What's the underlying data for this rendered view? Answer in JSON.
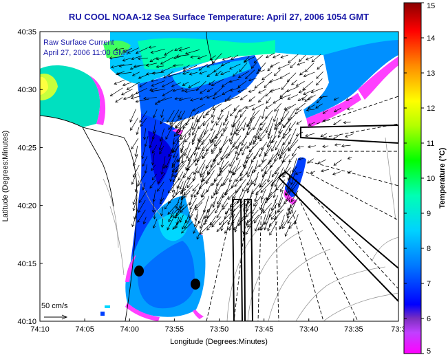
{
  "title": "RU COOL  NOAA-12 Sea Surface Temperature:  April 27, 2006 1054 GMT",
  "overlay": {
    "line1": "Raw Surface Current",
    "line2": "April 27, 2006 11:00 GMT"
  },
  "scale_label": "50 cm/s",
  "axes": {
    "xlabel": "Longitude (Degrees:Minutes)",
    "ylabel": "Latitude (Degrees:Minutes)",
    "x_ticks": [
      "74:10",
      "74:05",
      "74:00",
      "73:55",
      "73:50",
      "73:45",
      "73:40",
      "73:35",
      "73:3"
    ],
    "y_ticks": [
      "40:35",
      "40:30",
      "40:25",
      "40:20",
      "40:15",
      "40:10"
    ]
  },
  "colorbar": {
    "label": "Temperature (°C)",
    "min": 5,
    "max": 15,
    "ticks": [
      "5",
      "6",
      "7",
      "8",
      "9",
      "10",
      "11",
      "12",
      "13",
      "14",
      "15"
    ],
    "stops": [
      "#ff00ff",
      "#7b2fbf",
      "#0000ff",
      "#0078ff",
      "#00d2ff",
      "#00ffb4",
      "#00ff00",
      "#b4ff00",
      "#ffff00",
      "#ff8c00",
      "#ff0000",
      "#8b0000"
    ]
  },
  "colors": {
    "title": "#1a1aa8",
    "land": "#ffffff",
    "frame": "#000000"
  }
}
